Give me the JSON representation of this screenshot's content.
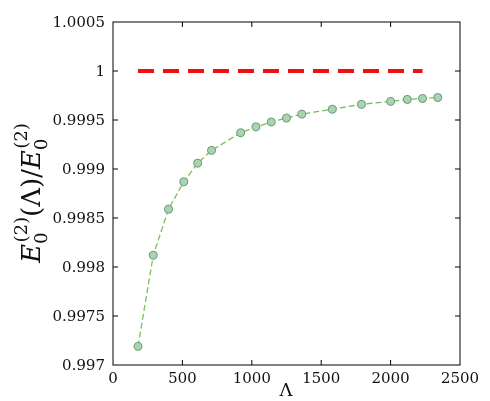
{
  "chart_data": {
    "type": "line",
    "xlabel": "Λ",
    "ylabel": {
      "base": "E",
      "sub": "0",
      "sup": "(2)",
      "arg": "(Λ)/"
    },
    "xlim": [
      0,
      2500
    ],
    "ylim": [
      0.997,
      1.0005
    ],
    "xticks": [
      0,
      500,
      1000,
      1500,
      2000,
      2500
    ],
    "yticks": [
      0.997,
      0.9975,
      0.998,
      0.9985,
      0.999,
      0.9995,
      1,
      1.0005
    ],
    "ytick_labels": [
      "0.997",
      "0.9975",
      "0.998",
      "0.9985",
      "0.999",
      "0.9995",
      "1",
      "1.0005"
    ],
    "xtick_labels": [
      "0",
      "500",
      "1000",
      "1500",
      "2000",
      "2500"
    ],
    "grid": false,
    "series": [
      {
        "style": "dashed-line-with-circles",
        "color": "#7cbf5a",
        "marker_fill": "#a8d5b0",
        "marker_edge": "#6f9a7a",
        "x": [
          180,
          290,
          400,
          510,
          610,
          710,
          920,
          1030,
          1140,
          1250,
          1360,
          1580,
          1790,
          2000,
          2120,
          2230,
          2340
        ],
        "y": [
          0.99719,
          0.99812,
          0.99859,
          0.99887,
          0.99906,
          0.99919,
          0.99937,
          0.99943,
          0.99948,
          0.99952,
          0.99956,
          0.99961,
          0.99966,
          0.99969,
          0.99971,
          0.99972,
          0.99973
        ]
      },
      {
        "style": "thick-dashed-line",
        "color": "#ee1111",
        "x": [
          180,
          2230
        ],
        "y": [
          1,
          1
        ]
      }
    ]
  }
}
